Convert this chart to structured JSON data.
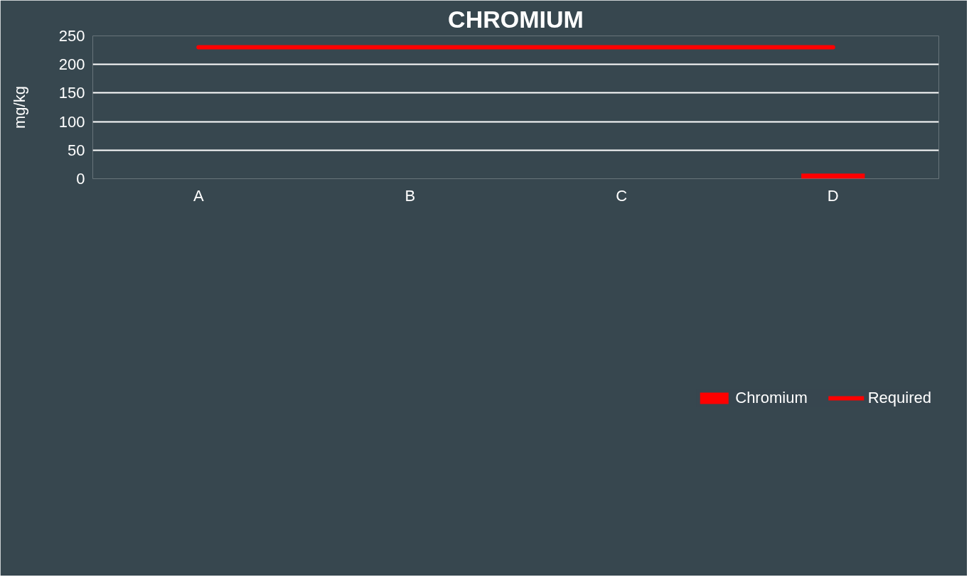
{
  "chart_data": {
    "type": "bar",
    "title": "CHROMIUM",
    "ylabel": "mg/kg",
    "categories": [
      "A",
      "B",
      "C",
      "D"
    ],
    "series": [
      {
        "name": "Chromium",
        "color": "#ff0000",
        "values": [
          0,
          0,
          0,
          9
        ]
      },
      {
        "name": "Required",
        "type": "line",
        "color": "#ff0000",
        "values": [
          230,
          230,
          230,
          230
        ]
      }
    ],
    "ylim": [
      0,
      250
    ],
    "yticks": [
      0,
      50,
      100,
      150,
      200,
      250
    ],
    "grid": "y",
    "legend": "bottom"
  }
}
